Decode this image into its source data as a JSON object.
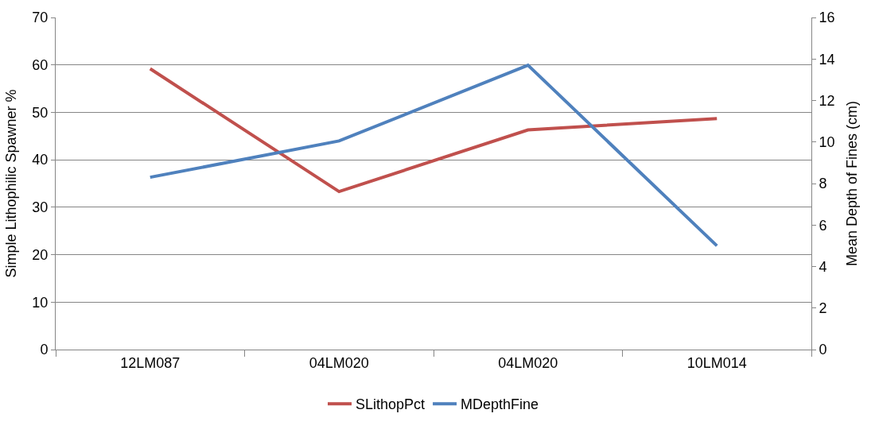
{
  "chart_data": {
    "type": "line",
    "categories": [
      "12LM087",
      "04LM020",
      "04LM020",
      "10LM014"
    ],
    "ylabel": "Simple Lithophilic Spawner %",
    "y2label": "Mean Depth of Fines (cm)",
    "ylim": [
      0,
      70
    ],
    "yticks": [
      0,
      10,
      20,
      30,
      40,
      50,
      60,
      70
    ],
    "y2lim": [
      0,
      16
    ],
    "y2ticks": [
      0,
      2,
      4,
      6,
      8,
      10,
      12,
      14,
      16
    ],
    "grid": "y",
    "legend": "bottom",
    "marker": "none",
    "line_style": "solid",
    "series": [
      {
        "name": "SLithopPct",
        "color": "#c0504d",
        "values": [
          59.2,
          33.3,
          46.3,
          48.7
        ]
      },
      {
        "name": "MDepthFine",
        "color": "#4f81bd",
        "values": [
          8.3,
          10.05,
          13.7,
          5.0
        ],
        "axis": "y2"
      }
    ]
  }
}
